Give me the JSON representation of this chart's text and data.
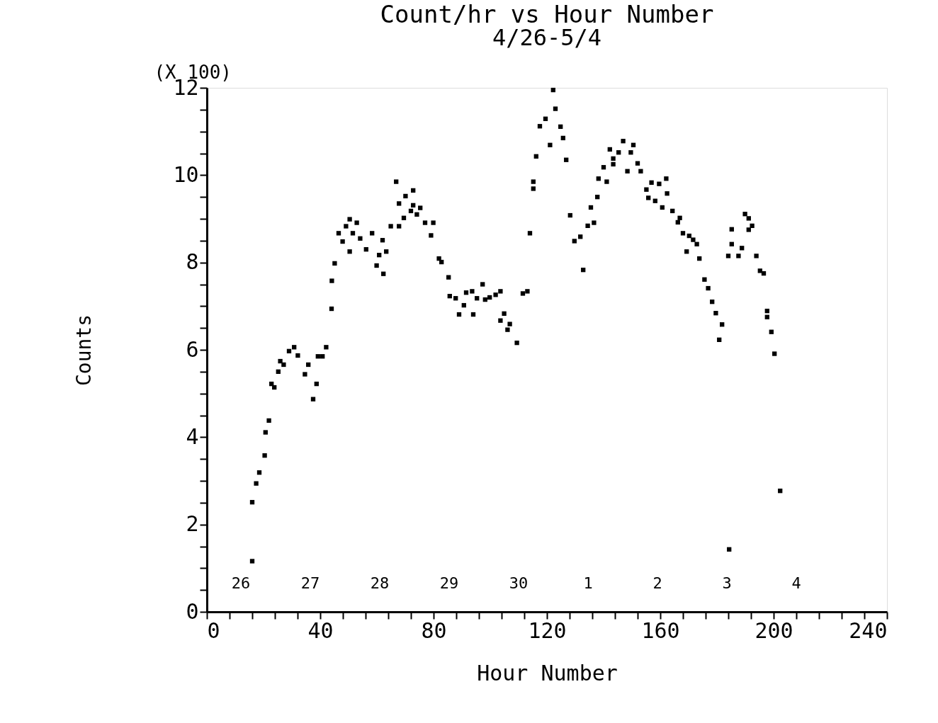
{
  "chart_data": {
    "type": "scatter",
    "title": "Count/hr vs Hour Number",
    "subtitle": "4/26-5/4",
    "xlabel": "Hour Number",
    "ylabel": "Counts",
    "annotations": [
      "(X 100)",
      "26",
      "27",
      "28",
      "29",
      "30",
      "1",
      "2",
      "3",
      "4"
    ],
    "marker": "square",
    "grid": false,
    "xlim": [
      0,
      240
    ],
    "ylim": [
      0,
      12
    ],
    "xticks": [
      0,
      {
        "value": 8,
        "label": null
      },
      {
        "value": 16,
        "label": null
      },
      {
        "value": 24,
        "label": null
      },
      {
        "value": 32,
        "label": null
      },
      40,
      {
        "value": 48,
        "label": null
      },
      {
        "value": 56,
        "label": null
      },
      {
        "value": 64,
        "label": null
      },
      {
        "value": 72,
        "label": null
      },
      80,
      {
        "value": 88,
        "label": null
      },
      {
        "value": 96,
        "label": null
      },
      {
        "value": 104,
        "label": null
      },
      {
        "value": 112,
        "label": null
      },
      120,
      {
        "value": 128,
        "label": null
      },
      {
        "value": 136,
        "label": null
      },
      {
        "value": 144,
        "label": null
      },
      {
        "value": 152,
        "label": null
      },
      160,
      {
        "value": 168,
        "label": null
      },
      {
        "value": 176,
        "label": null
      },
      {
        "value": 184,
        "label": null
      },
      {
        "value": 192,
        "label": null
      },
      200,
      {
        "value": 208,
        "label": null
      },
      {
        "value": 216,
        "label": null
      },
      {
        "value": 224,
        "label": null
      },
      {
        "value": 232,
        "label": null
      },
      240
    ],
    "yticks": [
      0,
      {
        "value": 0.5,
        "label": null
      },
      {
        "value": 1,
        "label": null
      },
      {
        "value": 1.5,
        "label": null
      },
      2,
      {
        "value": 2.5,
        "label": null
      },
      {
        "value": 3,
        "label": null
      },
      {
        "value": 3.5,
        "label": null
      },
      4,
      {
        "value": 4.5,
        "label": null
      },
      {
        "value": 5,
        "label": null
      },
      {
        "value": 5.5,
        "label": null
      },
      6,
      {
        "value": 6.5,
        "label": null
      },
      {
        "value": 7,
        "label": null
      },
      {
        "value": 7.5,
        "label": null
      },
      8,
      {
        "value": 8.5,
        "label": null
      },
      {
        "value": 9,
        "label": null
      },
      {
        "value": 9.5,
        "label": null
      },
      10,
      {
        "value": 10.5,
        "label": null
      },
      {
        "value": 11,
        "label": null
      },
      {
        "value": 11.5,
        "label": null
      },
      12
    ],
    "series": [
      {
        "color": "#000000",
        "x": [
          16.0,
          16.0,
          17.4,
          18.5,
          20.4,
          20.7,
          21.9,
          22.8,
          23.8,
          25.2,
          25.9,
          27.1,
          29.0,
          30.8,
          32.1,
          34.6,
          35.8,
          37.5,
          38.7,
          39.2,
          40.8,
          42.1,
          44.0,
          44.1,
          45.1,
          46.5,
          47.9,
          49.1,
          50.4,
          51.5,
          52.9,
          50.4,
          54.1,
          56.2,
          58.3,
          59.9,
          62.0,
          60.8,
          63.3,
          62.3,
          64.9,
          67.8,
          66.8,
          67.8,
          69.5,
          70.1,
          72.8,
          72.8,
          72.0,
          74.1,
          75.3,
          77.0,
          79.9,
          79.1,
          81.9,
          82.8,
          85.3,
          85.7,
          87.8,
          89.0,
          90.7,
          91.5,
          93.6,
          94.0,
          95.3,
          97.3,
          98.2,
          99.8,
          101.9,
          103.6,
          104.9,
          103.6,
          106.9,
          106.1,
          109.4,
          111.5,
          113.1,
          114.0,
          115.2,
          115.2,
          116.2,
          117.5,
          119.5,
          121.1,
          122.2,
          123.0,
          124.8,
          125.7,
          126.8,
          128.2,
          129.7,
          131.8,
          132.8,
          134.4,
          136.6,
          135.5,
          137.8,
          138.2,
          141.1,
          140.0,
          142.2,
          143.4,
          143.4,
          145.3,
          146.9,
          148.4,
          149.6,
          150.5,
          152.0,
          153.1,
          156.9,
          155.1,
          155.8,
          159.6,
          158.2,
          162.1,
          162.4,
          160.7,
          164.3,
          166.2,
          166.9,
          168.0,
          170.2,
          171.6,
          172.9,
          169.3,
          173.8,
          175.6,
          176.9,
          178.3,
          179.6,
          181.8,
          180.8,
          185.2,
          184.0,
          185.2,
          187.6,
          188.8,
          189.9,
          191.2,
          192.4,
          191.2,
          193.9,
          195.2,
          196.5,
          197.7,
          197.7,
          199.2,
          200.3,
          202.3,
          184.3
        ],
        "values": [
          1.16,
          2.51,
          2.94,
          3.19,
          3.58,
          4.11,
          4.38,
          5.22,
          5.14,
          5.5,
          5.74,
          5.66,
          5.97,
          6.06,
          5.87,
          5.44,
          5.66,
          4.87,
          5.22,
          5.85,
          5.85,
          6.06,
          6.94,
          7.58,
          7.98,
          8.67,
          8.48,
          8.83,
          8.99,
          8.67,
          8.91,
          8.25,
          8.55,
          8.3,
          8.67,
          7.93,
          8.51,
          8.17,
          8.25,
          7.74,
          8.83,
          8.83,
          9.85,
          9.35,
          9.02,
          9.52,
          9.65,
          9.31,
          9.18,
          9.1,
          9.25,
          8.91,
          8.91,
          8.62,
          8.09,
          8.01,
          7.66,
          7.23,
          7.18,
          6.81,
          7.02,
          7.31,
          7.34,
          6.81,
          7.18,
          7.5,
          7.15,
          7.2,
          7.26,
          7.34,
          6.83,
          6.67,
          6.59,
          6.46,
          6.16,
          7.29,
          7.34,
          8.67,
          9.85,
          9.69,
          10.43,
          11.12,
          11.29,
          10.69,
          11.95,
          11.52,
          11.11,
          10.85,
          10.35,
          9.08,
          8.49,
          8.59,
          7.83,
          8.84,
          8.91,
          9.26,
          9.5,
          9.92,
          9.85,
          10.18,
          10.59,
          10.38,
          10.25,
          10.52,
          10.78,
          10.09,
          10.52,
          10.69,
          10.27,
          10.09,
          9.83,
          9.67,
          9.48,
          9.8,
          9.41,
          9.92,
          9.58,
          9.26,
          9.18,
          8.92,
          9.02,
          8.67,
          8.61,
          8.52,
          8.42,
          8.25,
          8.09,
          7.61,
          7.41,
          7.1,
          6.84,
          6.58,
          6.23,
          8.76,
          8.15,
          8.42,
          8.15,
          8.33,
          9.11,
          9.01,
          8.84,
          8.75,
          8.15,
          7.81,
          7.75,
          6.89,
          6.75,
          6.41,
          5.91,
          2.77,
          1.43
        ]
      }
    ]
  }
}
